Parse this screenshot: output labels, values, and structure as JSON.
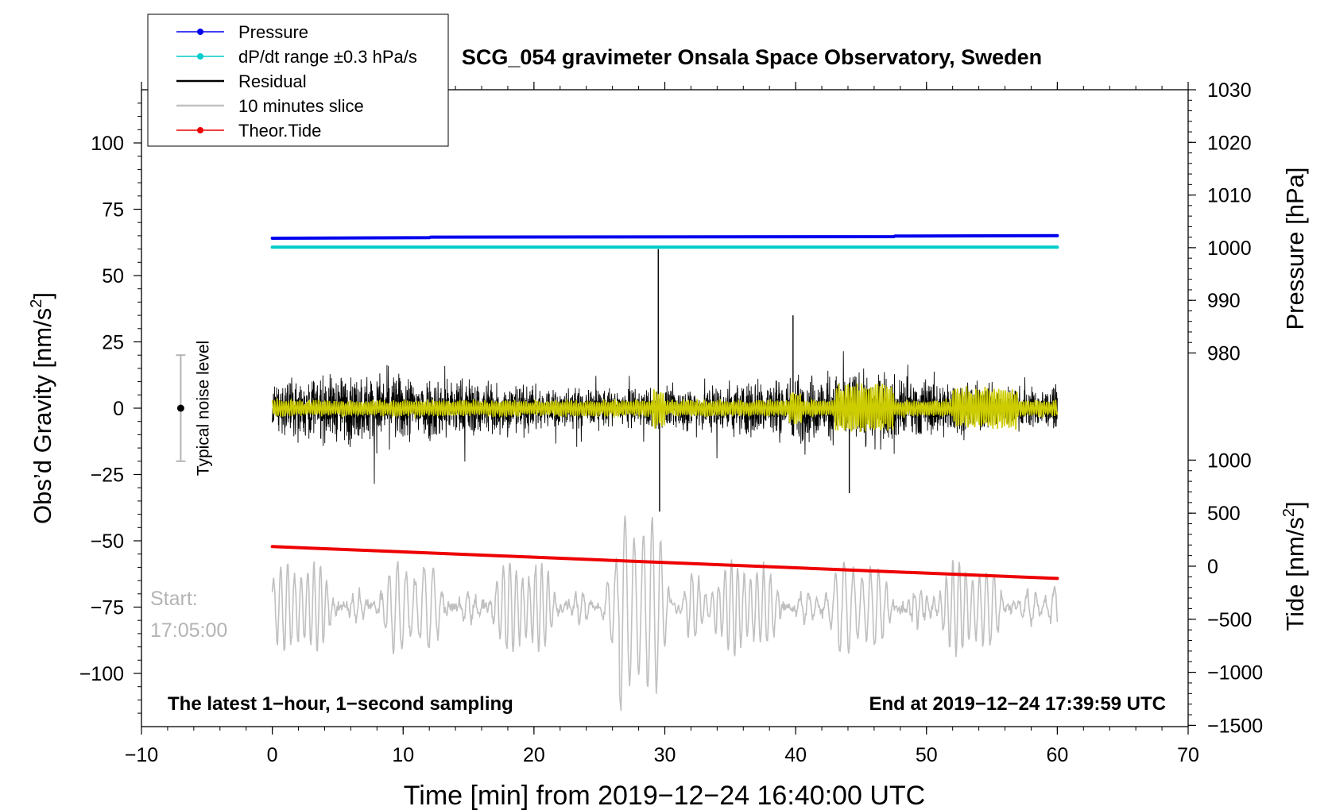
{
  "chart_data": {
    "type": "line",
    "title": "SCG_054 gravimeter Onsala Space Observatory, Sweden",
    "xlabel": "Time [min] from 2019−12−24 16:40:00 UTC",
    "xlim": [
      -10,
      70
    ],
    "x_ticks": [
      "−10",
      "0",
      "10",
      "20",
      "30",
      "40",
      "50",
      "60",
      "70"
    ],
    "x_tick_values": [
      -10,
      0,
      10,
      20,
      30,
      40,
      50,
      60,
      70
    ],
    "left_axis": {
      "label": "Obs’d Gravity [nm/s",
      "label_sup": "2",
      "label_end": "]",
      "ylim": [
        -120,
        120
      ],
      "ticks": [
        "100",
        "75",
        "50",
        "25",
        "0",
        "−25",
        "−50",
        "−75",
        "−100"
      ],
      "tick_values": [
        100,
        75,
        50,
        25,
        0,
        -25,
        -50,
        -75,
        -100
      ]
    },
    "pressure_axis": {
      "label": "Pressure [hPa]",
      "ticks": [
        "1030",
        "1020",
        "1010",
        "1000",
        "990",
        "980"
      ],
      "tick_values": [
        1030,
        1020,
        1010,
        1000,
        990,
        980
      ]
    },
    "tide_axis": {
      "label": "Tide [nm/s",
      "label_sup": "2",
      "label_end": "]",
      "ticks": [
        "1000",
        "500",
        "0",
        "−500",
        "−1000",
        "−1500"
      ],
      "tick_values": [
        1000,
        500,
        0,
        -500,
        -1000,
        -1500
      ]
    },
    "legend": {
      "position": "top-left",
      "entries": [
        {
          "name": "Pressure",
          "color": "#0000ee",
          "marker": true
        },
        {
          "name": "dP/dt range ±0.3 hPa/s",
          "color": "#00cccc",
          "marker": true
        },
        {
          "name": "Residual",
          "color": "#000000",
          "marker": false
        },
        {
          "name": "10 minutes slice",
          "color": "#c0c0c0",
          "marker": false
        },
        {
          "name": "Theor.Tide",
          "color": "#ee0000",
          "marker": true
        }
      ]
    },
    "series": [
      {
        "name": "Pressure",
        "axis": "pressure",
        "color": "#0000ee",
        "x": [
          0,
          12,
          12.1,
          47.5,
          47.6,
          60
        ],
        "values": [
          1001.8,
          1001.9,
          1002.0,
          1002.1,
          1002.2,
          1002.3
        ]
      },
      {
        "name": "dP/dt range ±0.3 hPa/s",
        "axis": "pressure",
        "color": "#00cccc",
        "x": [
          0,
          60
        ],
        "values": [
          1000.1,
          1000.1
        ]
      },
      {
        "name": "Theor.Tide",
        "axis": "tide",
        "color": "#ee0000",
        "x": [
          0,
          60
        ],
        "values": [
          185,
          -115
        ]
      },
      {
        "name": "Residual",
        "axis": "left",
        "color": "#000000",
        "x_range": [
          0,
          60
        ],
        "typical_amplitude": 10,
        "spikes": [
          {
            "x": 29.5,
            "y": 60
          },
          {
            "x": 29.6,
            "y": -39
          },
          {
            "x": 39.8,
            "y": 35
          },
          {
            "x": 44.1,
            "y": -32
          }
        ]
      },
      {
        "name": "Residual (smoothed)",
        "axis": "left",
        "color": "#cccc00",
        "x_range": [
          0,
          60
        ],
        "typical_amplitude": 3
      },
      {
        "name": "10 minutes slice",
        "axis": "left",
        "color": "#c0c0c0",
        "x_range": [
          0,
          60
        ],
        "baseline": -75,
        "typical_amplitude": 14
      }
    ],
    "noise_indicator": {
      "label": "Typical noise level",
      "x": -7,
      "center": 0,
      "range": [
        -20,
        20
      ]
    },
    "annotations": {
      "start_label": "Start:",
      "start_time": "17:05:00",
      "bottom_left": "The latest 1−hour, 1−second sampling",
      "bottom_right": "End at 2019−12−24 17:39:59 UTC"
    }
  }
}
